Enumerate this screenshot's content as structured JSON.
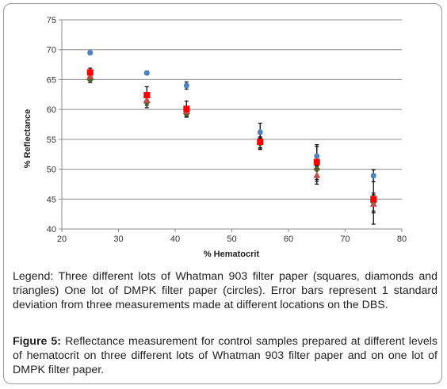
{
  "chart_data": {
    "type": "scatter",
    "xlabel": "% Hematocrit",
    "ylabel": "% Reflectance",
    "xlim": [
      20,
      80
    ],
    "ylim": [
      40,
      75
    ],
    "xticks": [
      20,
      30,
      40,
      50,
      60,
      70,
      80
    ],
    "yticks": [
      40,
      45,
      50,
      55,
      60,
      65,
      70,
      75
    ],
    "grid": "horizontal",
    "series": [
      {
        "marker": "circle",
        "color": "#4f81bd",
        "x": [
          25,
          35,
          42,
          55,
          65,
          75
        ],
        "y": [
          69.5,
          66.1,
          64.0,
          56.2,
          52.2,
          48.9
        ],
        "err": [
          0.3,
          0.3,
          0.6,
          1.5,
          1.6,
          1.0
        ]
      },
      {
        "marker": "square",
        "color": "#ff0000",
        "x": [
          25,
          35,
          42,
          55,
          65,
          75
        ],
        "y": [
          66.2,
          62.4,
          60.1,
          54.6,
          51.2,
          45.0
        ],
        "err": [
          0.7,
          1.4,
          1.3,
          1.3,
          2.9,
          4.2
        ]
      },
      {
        "marker": "diamond",
        "color": "#4f6228",
        "x": [
          25,
          35,
          42,
          55,
          65,
          75
        ],
        "y": [
          65.0,
          61.2,
          59.3,
          54.3,
          50.0,
          44.5
        ],
        "err": [
          0.5,
          0.9,
          0.6,
          0.9,
          2.0,
          1.5
        ]
      },
      {
        "marker": "triangle",
        "color": "#c0504d",
        "x": [
          25,
          35,
          42,
          55,
          65,
          75
        ],
        "y": [
          65.6,
          61.6,
          59.7,
          54.5,
          49.0,
          44.2
        ],
        "err": [
          0.5,
          0.9,
          0.7,
          0.9,
          1.5,
          1.5
        ]
      }
    ]
  },
  "legend_text": "Legend: Three different lots of Whatman 903 filter paper (squares, diamonds and triangles) One lot of DMPK filter paper (circles). Error bars represent 1 standard deviation from three measurements made at different locations on the DBS.",
  "caption": {
    "label": "Figure 5:",
    "text": " Reflectance measurement for control samples prepared at different levels of hematocrit on three different lots of Whatman 903 filter paper and on one lot of DMPK filter paper."
  }
}
